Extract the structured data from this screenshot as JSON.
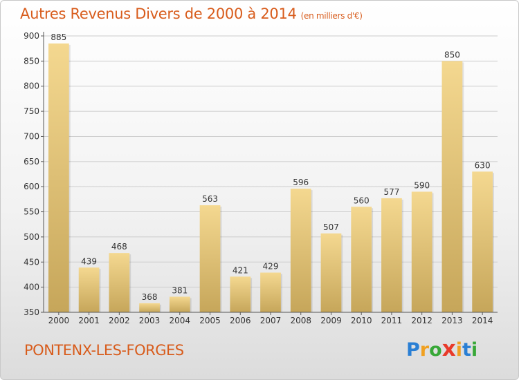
{
  "header": {
    "title": "Autres Revenus Divers de 2000 à 2014",
    "subtitle": "(en milliers d'€)"
  },
  "footer": {
    "commune": "PONTENX-LES-FORGES",
    "logo": {
      "text": "Proxiti",
      "letters": [
        {
          "ch": "P",
          "color": "#2a7fd4"
        },
        {
          "ch": "r",
          "color": "#f0a020"
        },
        {
          "ch": "o",
          "color": "#38a838"
        },
        {
          "ch": "x",
          "color": "#e83a2a"
        },
        {
          "ch": "i",
          "color": "#f0a020"
        },
        {
          "ch": "t",
          "color": "#2a7fd4"
        },
        {
          "ch": "i",
          "color": "#38a838"
        }
      ]
    }
  },
  "colors": {
    "title": "#d85c1c",
    "bar_light": "#f4d890",
    "bar_dark": "#c6a65a",
    "grid": "#cccccc"
  },
  "chart_data": {
    "type": "bar",
    "title": "Autres Revenus Divers de 2000 à 2014",
    "subtitle": "(en milliers d'€)",
    "xlabel": "",
    "ylabel": "",
    "categories": [
      "2000",
      "2001",
      "2002",
      "2003",
      "2004",
      "2005",
      "2006",
      "2007",
      "2008",
      "2009",
      "2010",
      "2011",
      "2012",
      "2013",
      "2014"
    ],
    "values": [
      885,
      439,
      468,
      368,
      381,
      563,
      421,
      429,
      596,
      507,
      560,
      577,
      590,
      850,
      630
    ],
    "ylim": [
      350,
      900
    ],
    "yticks": [
      350,
      400,
      450,
      500,
      550,
      600,
      650,
      700,
      750,
      800,
      850,
      900
    ],
    "grid": true,
    "data_labels": true
  }
}
